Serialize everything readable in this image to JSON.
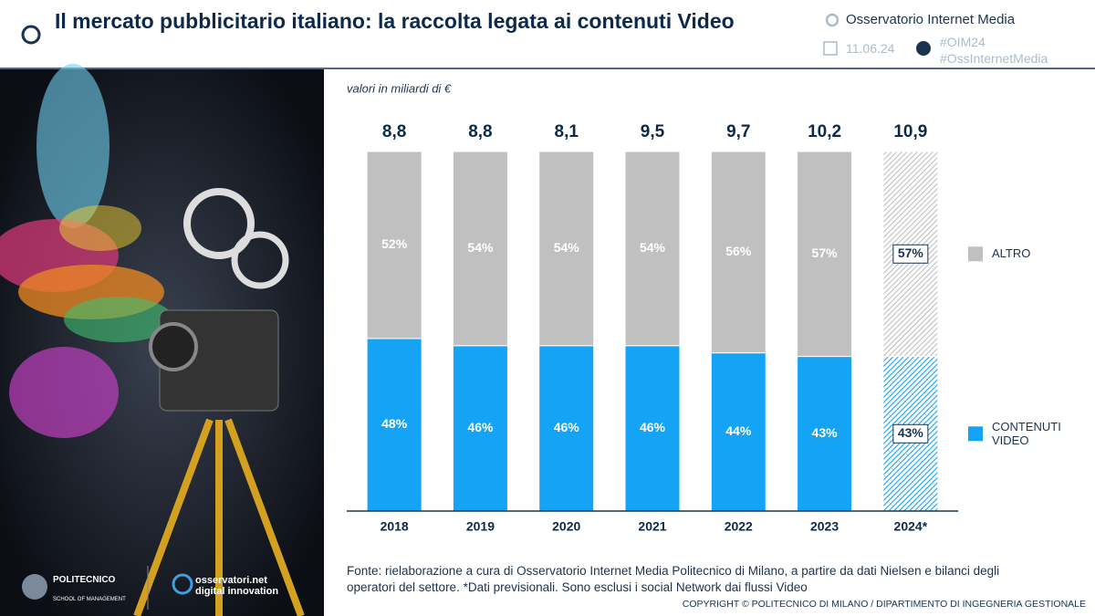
{
  "header": {
    "title": "Il mercato pubblicitario italiano: la raccolta legata ai contenuti Video",
    "brand": "Osservatorio Internet Media",
    "date": "11.06.24",
    "hashtags": [
      "#OIM24",
      "#OssInternetMedia"
    ]
  },
  "logos": {
    "school": "POLITECNICO",
    "school_sub": "SCHOOL OF MANAGEMENT",
    "net": "osservatori.net",
    "net_sub": "digital innovation"
  },
  "chart_data": {
    "type": "stacked_bar",
    "subtitle": "valori in miliardi di €",
    "categories": [
      "2018",
      "2019",
      "2020",
      "2021",
      "2022",
      "2023",
      "2024*"
    ],
    "series": [
      {
        "name": "CONTENUTI VIDEO",
        "color": "#15a4f5",
        "values": [
          48,
          46,
          46,
          46,
          44,
          43,
          43
        ],
        "value_labels": [
          "48%",
          "46%",
          "46%",
          "46%",
          "44%",
          "43%",
          "43%"
        ]
      },
      {
        "name": "ALTRO",
        "color": "#c0c0c0",
        "values": [
          52,
          54,
          54,
          54,
          56,
          57,
          57
        ],
        "value_labels": [
          "52%",
          "54%",
          "54%",
          "54%",
          "56%",
          "57%",
          "57%"
        ]
      }
    ],
    "totals": {
      "values": [
        8.8,
        8.8,
        8.1,
        9.5,
        9.7,
        10.2,
        10.9
      ],
      "value_labels": [
        "8,8",
        "8,8",
        "8,1",
        "9,5",
        "9,7",
        "10,2",
        "10,9"
      ]
    },
    "hatched": [
      false,
      false,
      false,
      false,
      false,
      false,
      true
    ],
    "ylim": [
      0,
      100
    ],
    "legend": "right"
  },
  "footer": {
    "source": "Fonte: rielaborazione a cura di Osservatorio Internet Media Politecnico di Milano, a partire da dati Nielsen e bilanci degli operatori del settore. *Dati previsionali. Sono esclusi i social Network dai flussi Video",
    "copyright": "COPYRIGHT © POLITECNICO DI MILANO / DIPARTIMENTO DI INGEGNERIA GESTIONALE"
  }
}
